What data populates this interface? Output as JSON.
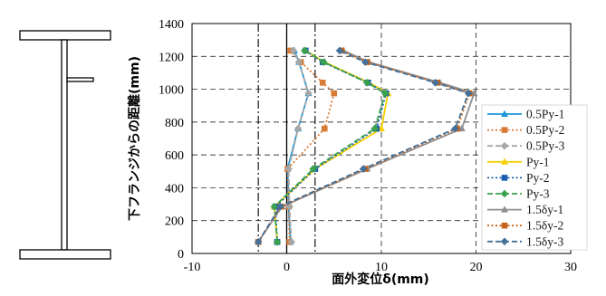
{
  "chart_data": {
    "type": "line",
    "xlabel": "面外変位δ(mm)",
    "ylabel": "下フランジからの距離(mm)",
    "xlim": [
      -10,
      30
    ],
    "ylim": [
      0,
      1400
    ],
    "x_ticks": [
      -10,
      0,
      10,
      20,
      30
    ],
    "y_ticks": [
      0,
      200,
      400,
      600,
      800,
      1000,
      1200,
      1400
    ],
    "grid": true,
    "legend_position": "right",
    "reference_lines_x": [
      -3,
      3
    ],
    "series": [
      {
        "name": "0.5Py-1",
        "color": "#1f96d8",
        "dash": "solid",
        "marker": "triangle",
        "points": [
          [
            0.4,
            70
          ],
          [
            0.2,
            285
          ],
          [
            0.1,
            515
          ],
          [
            1.2,
            760
          ],
          [
            2.3,
            975
          ],
          [
            1.3,
            1165
          ],
          [
            0.8,
            1235
          ]
        ]
      },
      {
        "name": "0.5Py-2",
        "color": "#d97a35",
        "dash": "dotted",
        "marker": "square",
        "points": [
          [
            0.3,
            70
          ],
          [
            0.2,
            285
          ],
          [
            0.1,
            515
          ],
          [
            4.0,
            760
          ],
          [
            5.0,
            975
          ],
          [
            3.8,
            1040
          ],
          [
            1.5,
            1165
          ],
          [
            0.4,
            1235
          ]
        ]
      },
      {
        "name": "0.5Py-3",
        "color": "#a6a6a6",
        "dash": "dashed",
        "marker": "diamond",
        "points": [
          [
            0.5,
            70
          ],
          [
            0.3,
            285
          ],
          [
            0.2,
            515
          ],
          [
            1.2,
            760
          ],
          [
            2.3,
            975
          ],
          [
            1.3,
            1165
          ],
          [
            0.7,
            1235
          ]
        ]
      },
      {
        "name": "Py-1",
        "color": "#f5d000",
        "dash": "solid",
        "marker": "triangle",
        "points": [
          [
            -1.0,
            70
          ],
          [
            -1.3,
            285
          ],
          [
            3.0,
            515
          ],
          [
            10.0,
            760
          ],
          [
            10.7,
            975
          ],
          [
            8.7,
            1040
          ],
          [
            4.0,
            1165
          ],
          [
            2.0,
            1235
          ]
        ]
      },
      {
        "name": "Py-2",
        "color": "#1b5fb0",
        "dash": "dotted",
        "marker": "square",
        "points": [
          [
            -1.0,
            70
          ],
          [
            -1.2,
            285
          ],
          [
            3.0,
            515
          ],
          [
            9.5,
            760
          ],
          [
            10.5,
            975
          ],
          [
            8.6,
            1040
          ],
          [
            3.8,
            1165
          ],
          [
            2.0,
            1235
          ]
        ]
      },
      {
        "name": "Py-3",
        "color": "#3aa14e",
        "dash": "dashed",
        "marker": "diamond",
        "points": [
          [
            -1.0,
            70
          ],
          [
            -1.3,
            285
          ],
          [
            2.8,
            515
          ],
          [
            9.3,
            760
          ],
          [
            10.4,
            975
          ],
          [
            8.5,
            1040
          ],
          [
            3.9,
            1165
          ],
          [
            1.9,
            1235
          ]
        ]
      },
      {
        "name": "1.5δy-1",
        "color": "#8f8f8f",
        "dash": "solid",
        "marker": "triangle",
        "points": [
          [
            -3.0,
            70
          ],
          [
            -0.5,
            285
          ],
          [
            8.5,
            515
          ],
          [
            18.5,
            760
          ],
          [
            19.8,
            975
          ],
          [
            16.2,
            1040
          ],
          [
            8.7,
            1165
          ],
          [
            6.0,
            1235
          ]
        ]
      },
      {
        "name": "1.5δy-2",
        "color": "#c8651b",
        "dash": "dotted",
        "marker": "square",
        "points": [
          [
            -3.0,
            70
          ],
          [
            -0.6,
            285
          ],
          [
            8.3,
            515
          ],
          [
            18.0,
            760
          ],
          [
            19.3,
            975
          ],
          [
            15.9,
            1040
          ],
          [
            8.5,
            1165
          ],
          [
            5.8,
            1235
          ]
        ]
      },
      {
        "name": "1.5δy-3",
        "color": "#44709a",
        "dash": "dashed",
        "marker": "diamond",
        "points": [
          [
            -3.0,
            70
          ],
          [
            -0.7,
            285
          ],
          [
            8.1,
            515
          ],
          [
            17.8,
            760
          ],
          [
            19.2,
            975
          ],
          [
            15.7,
            1040
          ],
          [
            8.3,
            1165
          ],
          [
            5.6,
            1235
          ]
        ]
      }
    ]
  }
}
